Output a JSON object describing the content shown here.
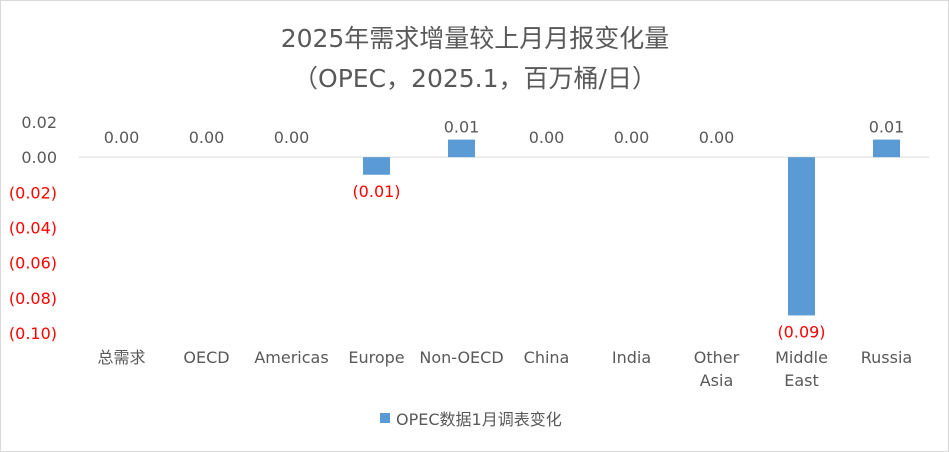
{
  "chart_data": {
    "type": "bar",
    "title_lines": [
      "2025年需求增量较上月月报变化量",
      "（OPEC，2025.1，百万桶/日）"
    ],
    "categories": [
      "总需求",
      "OECD",
      "Americas",
      "Europe",
      "Non-OECD",
      "China",
      "India",
      "Other Asia",
      "Middle East",
      "Russia"
    ],
    "series": [
      {
        "name": "OPEC数据1月调表变化",
        "values": [
          0.0,
          0.0,
          0.0,
          -0.01,
          0.01,
          0.0,
          0.0,
          0.0,
          -0.09,
          0.01
        ],
        "labels": [
          "0.00",
          "0.00",
          "0.00",
          "(0.01)",
          "0.01",
          "0.00",
          "0.00",
          "0.00",
          "(0.09)",
          "0.01"
        ],
        "color": "#5b9bd5"
      }
    ],
    "ylim": [
      -0.1,
      0.02
    ],
    "yticks": [
      0.02,
      0.0,
      -0.02,
      -0.04,
      -0.06,
      -0.08,
      -0.1
    ],
    "ytick_labels": [
      "0.02",
      "0.00",
      "(0.02)",
      "(0.04)",
      "(0.06)",
      "(0.08)",
      "(0.10)"
    ],
    "positive_label_color": "#595959",
    "negative_label_color": "#ff0000",
    "legend_position": "bottom",
    "grid": false
  }
}
